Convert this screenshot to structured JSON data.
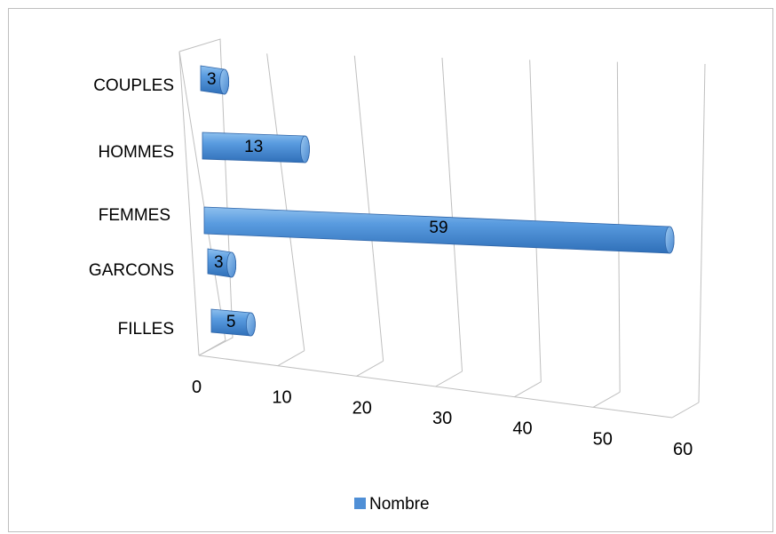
{
  "chart_data": {
    "type": "bar",
    "orientation": "horizontal",
    "style": "3d-cylinder",
    "categories": [
      "FILLES",
      "GARCONS",
      "FEMMES",
      "HOMMES",
      "COUPLES"
    ],
    "series": [
      {
        "name": "Nombre",
        "values": [
          5,
          3,
          59,
          13,
          3
        ],
        "color": "#4f8fd6"
      }
    ],
    "x_ticks": [
      "0",
      "10",
      "20",
      "30",
      "40",
      "50",
      "60"
    ],
    "xlim": [
      0,
      60
    ],
    "grid": true,
    "legend": "bottom",
    "title": "",
    "xlabel": "",
    "ylabel": ""
  }
}
